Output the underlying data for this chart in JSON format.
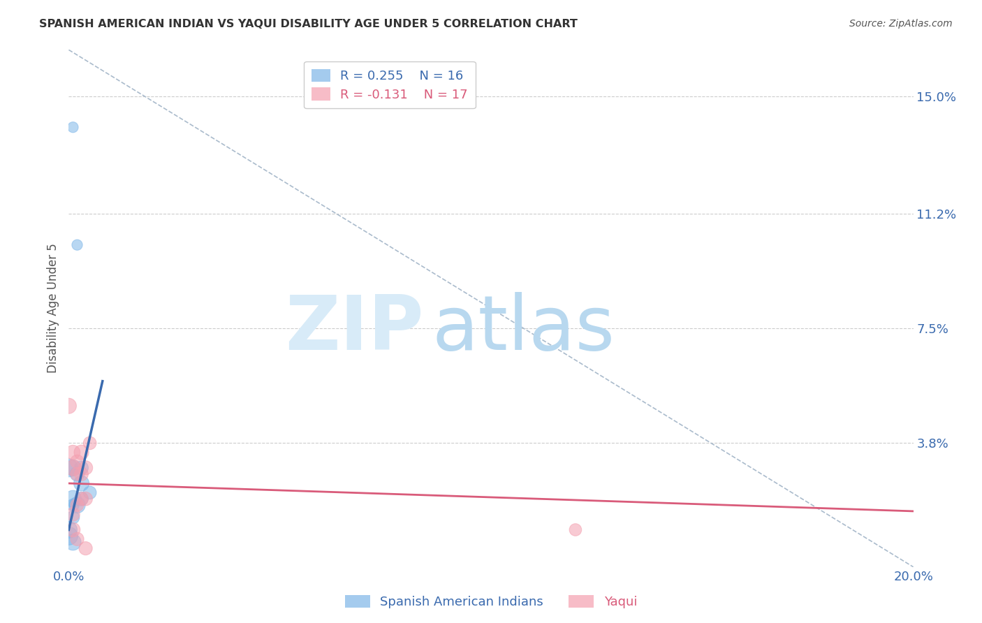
{
  "title": "SPANISH AMERICAN INDIAN VS YAQUI DISABILITY AGE UNDER 5 CORRELATION CHART",
  "source": "Source: ZipAtlas.com",
  "ylabel": "Disability Age Under 5",
  "xlim": [
    0.0,
    0.2
  ],
  "ylim": [
    -0.002,
    0.165
  ],
  "ytick_labels_right": [
    "15.0%",
    "11.2%",
    "7.5%",
    "3.8%"
  ],
  "ytick_values_right": [
    0.15,
    0.112,
    0.075,
    0.038
  ],
  "legend_r1": "R = 0.255",
  "legend_n1": "N = 16",
  "legend_r2": "R = -0.131",
  "legend_n2": "N = 17",
  "blue_color": "#7EB6E8",
  "pink_color": "#F4A0B0",
  "blue_line_color": "#3A6AAE",
  "pink_line_color": "#D95B7A",
  "dash_line_color": "#AABBCC",
  "grid_color": "#CCCCCC",
  "background_color": "#FFFFFF",
  "blue_scatter_x": [
    0.001,
    0.002,
    0.0,
    0.001,
    0.002,
    0.003,
    0.003,
    0.001,
    0.002,
    0.003,
    0.005,
    0.001,
    0.001,
    0.0,
    0.0,
    0.001
  ],
  "blue_scatter_y": [
    0.14,
    0.102,
    0.03,
    0.03,
    0.028,
    0.03,
    0.025,
    0.02,
    0.018,
    0.02,
    0.022,
    0.018,
    0.014,
    0.01,
    0.008,
    0.006
  ],
  "blue_scatter_size": [
    120,
    120,
    350,
    280,
    220,
    200,
    250,
    300,
    280,
    200,
    180,
    160,
    180,
    300,
    350,
    280
  ],
  "pink_scatter_x": [
    0.0,
    0.001,
    0.001,
    0.002,
    0.002,
    0.003,
    0.003,
    0.003,
    0.004,
    0.004,
    0.005,
    0.002,
    0.001,
    0.001,
    0.12,
    0.002,
    0.004
  ],
  "pink_scatter_y": [
    0.05,
    0.035,
    0.03,
    0.032,
    0.018,
    0.035,
    0.028,
    0.02,
    0.03,
    0.02,
    0.038,
    0.028,
    0.015,
    0.01,
    0.01,
    0.007,
    0.004
  ],
  "pink_scatter_size": [
    250,
    220,
    260,
    200,
    180,
    230,
    200,
    190,
    210,
    200,
    180,
    190,
    200,
    220,
    160,
    190,
    190
  ],
  "blue_line_x0": 0.0,
  "blue_line_x1": 0.008,
  "blue_line_y0": 0.01,
  "blue_line_y1": 0.058,
  "dash_line_x0": 0.0,
  "dash_line_x1": 0.2,
  "dash_line_y0": 0.165,
  "dash_line_y1": -0.002,
  "pink_line_x0": 0.0,
  "pink_line_x1": 0.2,
  "pink_line_y0": 0.025,
  "pink_line_y1": 0.016
}
